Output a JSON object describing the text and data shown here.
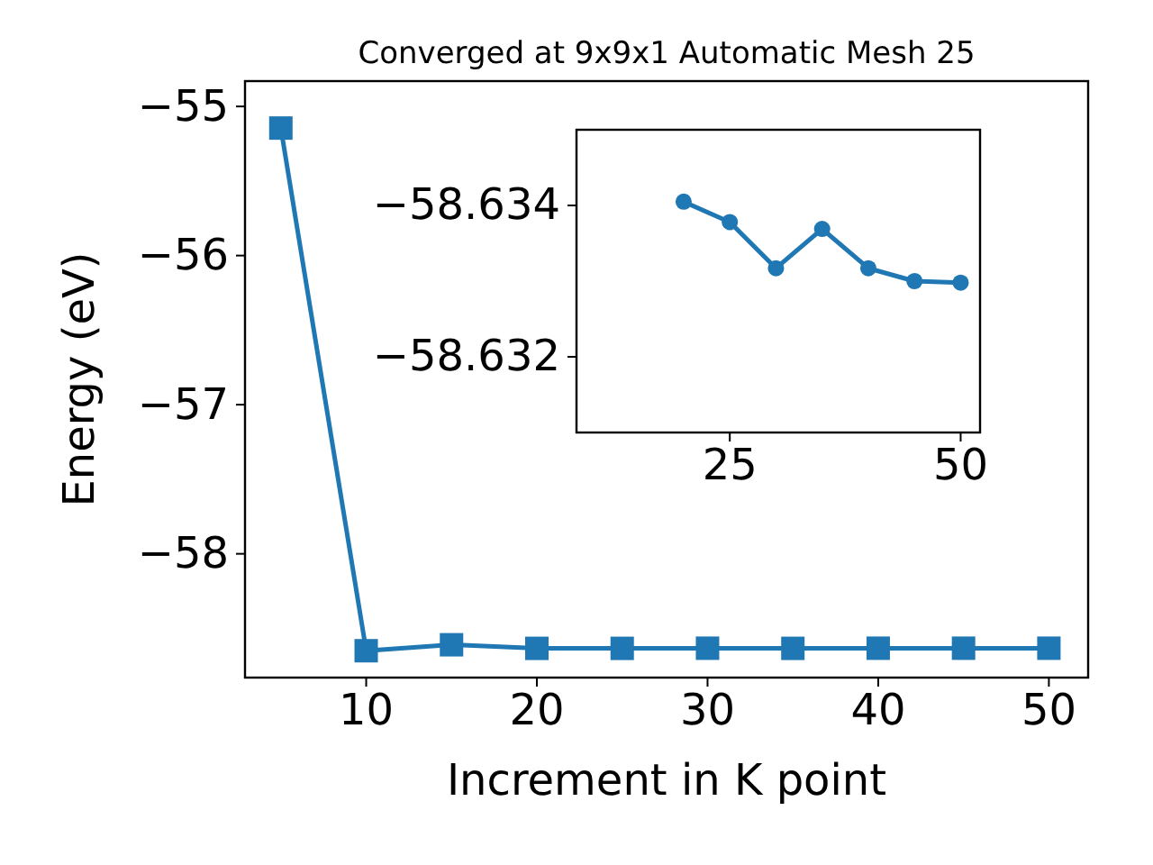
{
  "chart_data": [
    {
      "type": "line",
      "title": "Converged at 9x9x1 Automatic Mesh 25",
      "xlabel": "Increment in K point",
      "ylabel": "Energy (eV)",
      "x": [
        5,
        10,
        15,
        20,
        25,
        30,
        35,
        40,
        45,
        50
      ],
      "series": [
        {
          "color": "#1f77b4",
          "values": [
            -55.145,
            -58.65,
            -58.61,
            -58.634,
            -58.634,
            -58.633,
            -58.634,
            -58.633,
            -58.633,
            -58.633
          ]
        }
      ],
      "xlim": [
        2.9,
        52.3
      ],
      "ylim": [
        -58.83,
        -54.83
      ],
      "xticks": [
        10,
        20,
        30,
        40,
        50
      ],
      "yticks": [
        {
          "value": -58,
          "label": "−58"
        },
        {
          "value": -57,
          "label": "−57"
        },
        {
          "value": -56,
          "label": "−56"
        },
        {
          "value": -55,
          "label": "−55"
        }
      ],
      "marker": "square",
      "grid": false
    },
    {
      "type": "line",
      "x": [
        20,
        25,
        30,
        35,
        40,
        45,
        50
      ],
      "series": [
        {
          "color": "#1f77b4",
          "values": [
            -58.63405,
            -58.63378,
            -58.63317,
            -58.63369,
            -58.63317,
            -58.633,
            -58.63298
          ]
        }
      ],
      "xlim": [
        8.4,
        52.1
      ],
      "ylim": [
        -58.631,
        -58.635
      ],
      "xticks": [
        25,
        50
      ],
      "yticks": [
        {
          "value": -58.634,
          "label": "−58.634"
        },
        {
          "value": -58.632,
          "label": "−58.632"
        }
      ],
      "marker": "circle",
      "grid": false
    }
  ]
}
